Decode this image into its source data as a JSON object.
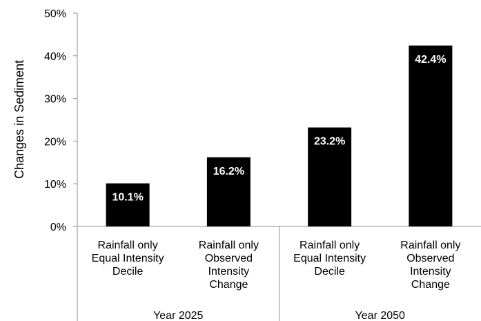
{
  "chart_data": {
    "type": "bar",
    "title": "",
    "ylabel": "Changes in Sediment",
    "xlabel": "",
    "ylim": [
      0,
      50
    ],
    "y_ticks": [
      "0%",
      "10%",
      "20%",
      "30%",
      "40%",
      "50%"
    ],
    "grid": false,
    "legend": "none",
    "bar_color": "#000000",
    "data_label_color": "#ffffff",
    "categories": [
      [
        "Rainfall only",
        "Equal Intensity",
        "Decile"
      ],
      [
        "Rainfall only",
        "Observed",
        "Intensity",
        "Change"
      ],
      [
        "Rainfall only",
        "Equal Intensity",
        "Decile"
      ],
      [
        "Rainfall only",
        "Observed",
        "Intensity",
        "Change"
      ]
    ],
    "groups": [
      {
        "label": "Year 2025",
        "span": 2
      },
      {
        "label": "Year 2050",
        "span": 2
      }
    ],
    "values": [
      10.1,
      16.2,
      23.2,
      42.4
    ],
    "data_labels": [
      "10.1%",
      "16.2%",
      "23.2%",
      "42.4%"
    ]
  }
}
